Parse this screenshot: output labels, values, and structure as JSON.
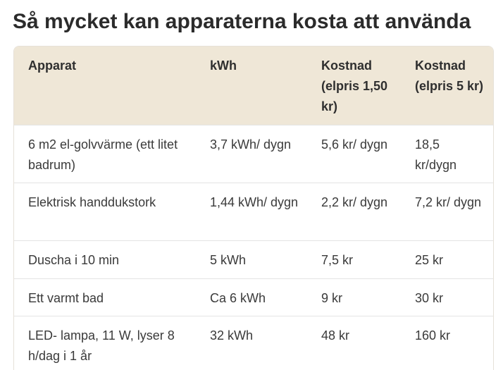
{
  "title": "Så mycket kan apparaterna kosta att använda",
  "table": {
    "headers": [
      "Apparat",
      "kWh",
      "Kostnad (elpris 1,50 kr)",
      "Kostnad (elpris 5 kr)"
    ],
    "rows": [
      [
        "6 m2 el-golvvärme (ett litet badrum)",
        "3,7 kWh/ dygn",
        "5,6 kr/ dygn",
        "18,5 kr/dygn"
      ],
      [
        "Elektrisk handdukstork",
        "1,44 kWh/ dygn",
        "2,2 kr/ dygn",
        "7,2 kr/ dygn"
      ],
      [
        "Duscha i 10 min",
        "5 kWh",
        "7,5 kr",
        "25 kr"
      ],
      [
        "Ett varmt bad",
        "Ca 6 kWh",
        "9 kr",
        "30 kr"
      ],
      [
        "LED- lampa, 11 W, lyser 8 h/dag i 1 år",
        "32 kWh",
        "48 kr",
        "160 kr"
      ]
    ]
  },
  "colors": {
    "header_background": "#efe7d7",
    "row_divider": "#e4e4e4",
    "title_text": "#2b2b2b"
  }
}
